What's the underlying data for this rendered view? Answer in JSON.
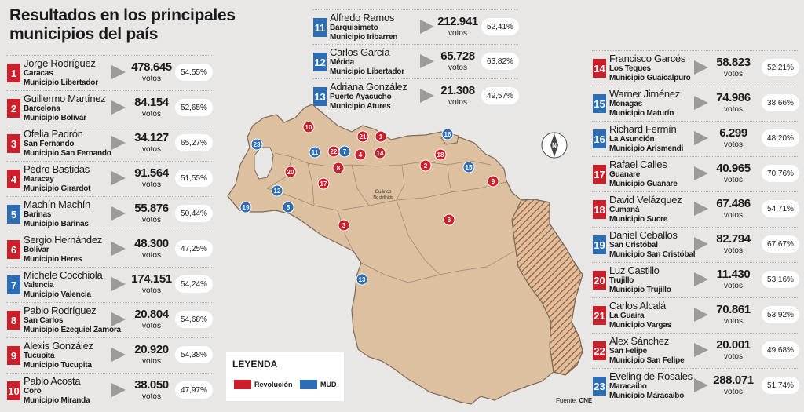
{
  "title": {
    "line1": "Resultados en los principales",
    "line2": "municipios del país"
  },
  "votes_unit": "votos",
  "legend": {
    "title": "LEYENDA",
    "items": [
      {
        "label": "Revolución",
        "color": "#cc1f2c"
      },
      {
        "label": "MUD",
        "color": "#2c6db3"
      }
    ]
  },
  "source": {
    "prefix": "Fuente:",
    "name": "CNE"
  },
  "map": {
    "region_label": "Guárico",
    "region_sublabel": "No definido",
    "land_color": "#dcc09f",
    "disputed_hatch_color": "#a0522d",
    "compass_label": "N"
  },
  "results": [
    {
      "n": "1",
      "party": "rev",
      "name": "Jorge Rodríguez",
      "city": "Caracas",
      "municipality": "Municipio Libertador",
      "votes": "478.645",
      "pct": "54,55%"
    },
    {
      "n": "2",
      "party": "rev",
      "name": "Guillermo Martínez",
      "city": "Barcelona",
      "municipality": "Municipio Bolívar",
      "votes": "84.154",
      "pct": "52,65%"
    },
    {
      "n": "3",
      "party": "rev",
      "name": "Ofelia Padrón",
      "city": "San Fernando",
      "municipality": "Municipio San Fernando",
      "votes": "34.127",
      "pct": "65,27%"
    },
    {
      "n": "4",
      "party": "rev",
      "name": "Pedro Bastidas",
      "city": "Maracay",
      "municipality": "Municipio Girardot",
      "votes": "91.564",
      "pct": "51,55%"
    },
    {
      "n": "5",
      "party": "mud",
      "name": "Machín Machín",
      "city": "Barinas",
      "municipality": "Municipio Barinas",
      "votes": "55.876",
      "pct": "50,44%"
    },
    {
      "n": "6",
      "party": "rev",
      "name": "Sergio Hernández",
      "city": "Bolívar",
      "municipality": "Municipio Heres",
      "votes": "48.300",
      "pct": "47,25%"
    },
    {
      "n": "7",
      "party": "mud",
      "name": "Michele Cocchiola",
      "city": "Valencia",
      "municipality": "Municipio Valencia",
      "votes": "174.151",
      "pct": "54,24%"
    },
    {
      "n": "8",
      "party": "rev",
      "name": "Pablo Rodríguez",
      "city": "San Carlos",
      "municipality": "Municipio Ezequiel Zamora",
      "votes": "20.804",
      "pct": "54,68%"
    },
    {
      "n": "9",
      "party": "rev",
      "name": "Alexis González",
      "city": "Tucupita",
      "municipality": "Municipio Tucupita",
      "votes": "20.920",
      "pct": "54,38%"
    },
    {
      "n": "10",
      "party": "rev",
      "name": "Pablo Acosta",
      "city": "Coro",
      "municipality": "Municipio Miranda",
      "votes": "38.050",
      "pct": "47,97%"
    },
    {
      "n": "11",
      "party": "mud",
      "name": "Alfredo Ramos",
      "city": "Barquisimeto",
      "municipality": "Municipio Iribarren",
      "votes": "212.941",
      "pct": "52,41%"
    },
    {
      "n": "12",
      "party": "mud",
      "name": "Carlos García",
      "city": "Mérida",
      "municipality": "Municipio Libertador",
      "votes": "65.728",
      "pct": "63,82%"
    },
    {
      "n": "13",
      "party": "mud",
      "name": "Adriana González",
      "city": "Puerto Ayacucho",
      "municipality": "Municipio Atures",
      "votes": "21.308",
      "pct": "49,57%"
    },
    {
      "n": "14",
      "party": "rev",
      "name": "Francisco Garcés",
      "city": "Los Teques",
      "municipality": "Municipio Guaicalpuro",
      "votes": "58.823",
      "pct": "52,21%"
    },
    {
      "n": "15",
      "party": "mud",
      "name": "Warner Jiménez",
      "city": "Monagas",
      "municipality": "Municipio Maturín",
      "votes": "74.986",
      "pct": "38,66%"
    },
    {
      "n": "16",
      "party": "mud",
      "name": "Richard Fermín",
      "city": "La Asunción",
      "municipality": "Municipio Arismendi",
      "votes": "6.299",
      "pct": "48,20%"
    },
    {
      "n": "17",
      "party": "rev",
      "name": "Rafael Calles",
      "city": "Guanare",
      "municipality": "Municipio Guanare",
      "votes": "40.965",
      "pct": "70,76%"
    },
    {
      "n": "18",
      "party": "rev",
      "name": "David Velázquez",
      "city": "Cumaná",
      "municipality": "Municipio Sucre",
      "votes": "67.486",
      "pct": "54,71%"
    },
    {
      "n": "19",
      "party": "mud",
      "name": "Daniel Ceballos",
      "city": "San Cristóbal",
      "municipality": "Municipio San Cristóbal",
      "votes": "82.794",
      "pct": "67,67%"
    },
    {
      "n": "20",
      "party": "rev",
      "name": "Luz Castillo",
      "city": "Trujillo",
      "municipality": "Municipio Trujillo",
      "votes": "11.430",
      "pct": "53,16%"
    },
    {
      "n": "21",
      "party": "rev",
      "name": "Carlos Alcalá",
      "city": "La Guaira",
      "municipality": "Municipio Vargas",
      "votes": "70.861",
      "pct": "53,92%"
    },
    {
      "n": "22",
      "party": "rev",
      "name": "Alex Sánchez",
      "city": "San Felipe",
      "municipality": "Municipio San Felipe",
      "votes": "20.001",
      "pct": "49,68%"
    },
    {
      "n": "23",
      "party": "mud",
      "name": "Eveling de Rosales",
      "city": "Maracaibo",
      "municipality": "Municipio Maracaibo",
      "votes": "288.071",
      "pct": "51,74%"
    }
  ]
}
